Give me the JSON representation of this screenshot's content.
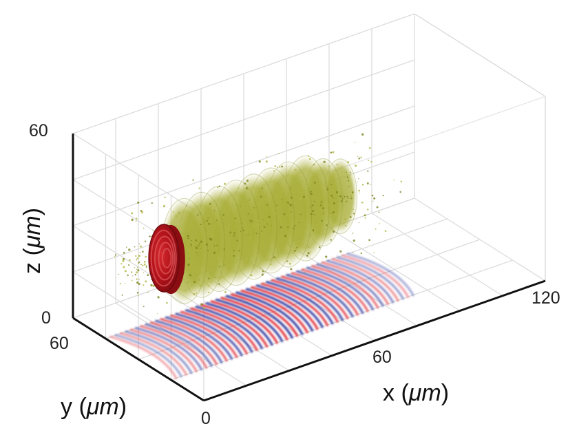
{
  "chart_data": {
    "type": "3d-volume",
    "title": "",
    "axes": {
      "x": {
        "label": "x",
        "unit": "μm",
        "range": [
          0,
          120
        ],
        "ticks": [
          60,
          120
        ],
        "tick_labels": [
          "60",
          "120"
        ]
      },
      "y": {
        "label": "y",
        "unit": "μm",
        "range": [
          0,
          60
        ],
        "ticks": [
          0,
          60
        ],
        "tick_labels": [
          "0",
          "60"
        ]
      },
      "z": {
        "label": "z",
        "unit": "μm",
        "range": [
          0,
          60
        ],
        "ticks": [
          0,
          60
        ],
        "tick_labels": [
          "0",
          "60"
        ]
      }
    },
    "grid": true,
    "objects": [
      {
        "kind": "dense-disc",
        "color": "#b8141b",
        "x_center": 9,
        "y_center": 30,
        "z_center": 30,
        "radius": 11
      },
      {
        "kind": "particle-cloud",
        "color": "#9aa42a",
        "x_range": [
          0,
          75
        ],
        "y_center": 30,
        "z_center": 30,
        "max_radius": 18
      },
      {
        "kind": "wave-field-projection",
        "plane": "z=0",
        "colors": {
          "positive": "#e0202a",
          "negative": "#1d2a9a"
        },
        "x_range": [
          5,
          90
        ],
        "y_range": [
          15,
          45
        ],
        "fringe_count": 24
      }
    ]
  },
  "labels": {
    "x_axis": "x",
    "y_axis": "y",
    "z_axis": "z",
    "unit": "μm",
    "x_tick_60": "60",
    "x_tick_120": "120",
    "y_tick_0": "0",
    "y_tick_60": "60",
    "z_tick_0": "0",
    "z_tick_60": "60"
  }
}
